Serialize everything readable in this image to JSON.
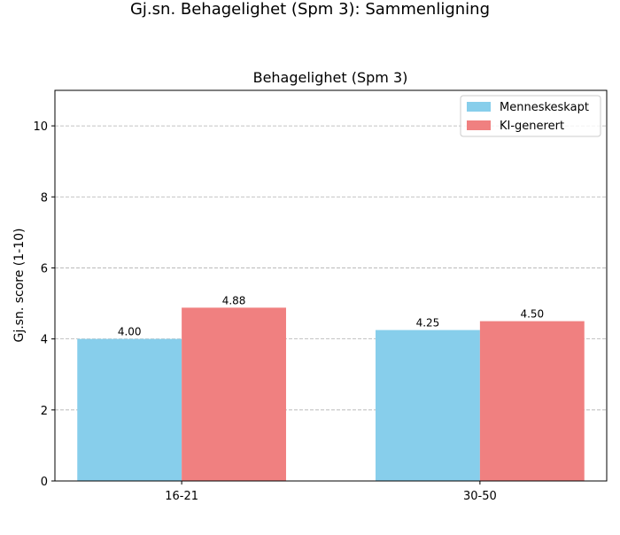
{
  "figure_title": "Gj.sn. Behagelighet (Spm 3): Sammenligning",
  "chart_data": {
    "type": "bar",
    "title": "Behagelighet (Spm 3)",
    "xlabel": "",
    "ylabel": "Gj.sn. score (1-10)",
    "categories": [
      "16-21",
      "30-50"
    ],
    "series": [
      {
        "name": "Menneskeskapt",
        "color": "#87ceeb",
        "values": [
          4.0,
          4.25
        ],
        "labels": [
          "4.00",
          "4.25"
        ]
      },
      {
        "name": "KI-generert",
        "color": "#f08080",
        "values": [
          4.88,
          4.5
        ],
        "labels": [
          "4.88",
          "4.50"
        ]
      }
    ],
    "ylim": [
      0,
      11
    ],
    "yticks": [
      0,
      2,
      4,
      6,
      8,
      10
    ],
    "grid": "y-dashed",
    "legend": "top-right"
  }
}
